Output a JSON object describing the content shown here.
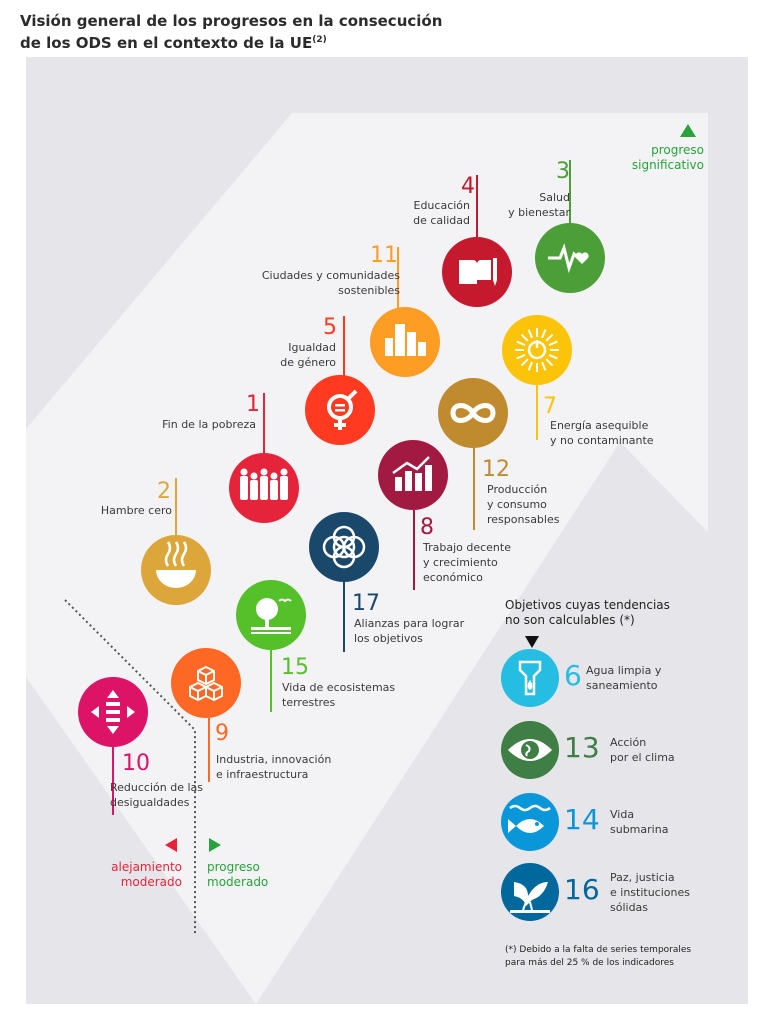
{
  "title": {
    "line1": "Visión general de los progresos en la consecución",
    "line2": "de los ODS en el contexto de la UE",
    "sup": "(2)"
  },
  "legend": {
    "significant": [
      "progreso",
      "significativo"
    ],
    "moderate_progress": [
      "progreso",
      "moderado"
    ],
    "moderate_away": [
      "alejamiento",
      "moderado"
    ]
  },
  "goals": [
    {
      "id": "g3",
      "num": "3",
      "label": [
        "Salud",
        "y bienestar"
      ],
      "color": "#4c9f38",
      "icon": "heartbeat-icon"
    },
    {
      "id": "g4",
      "num": "4",
      "label": [
        "Educación",
        "de calidad"
      ],
      "color": "#c5192d",
      "icon": "book-pencil-icon"
    },
    {
      "id": "g11",
      "num": "11",
      "label": [
        "Ciudades y comunidades",
        "sostenibles"
      ],
      "color": "#fd9d24",
      "icon": "city-icon"
    },
    {
      "id": "g5",
      "num": "5",
      "label": [
        "Igualdad",
        "de género"
      ],
      "color": "#ff3a21",
      "icon": "gender-equality-icon"
    },
    {
      "id": "g7",
      "num": "7",
      "label": [
        "Energía asequible",
        "y no contaminante"
      ],
      "color": "#fcc30b",
      "icon": "sun-power-icon"
    },
    {
      "id": "g1",
      "num": "1",
      "label": [
        "Fin de la pobreza"
      ],
      "color": "#e5243b",
      "icon": "family-icon"
    },
    {
      "id": "g12",
      "num": "12",
      "label": [
        "Producción",
        "y consumo",
        "responsables"
      ],
      "color": "#bf8b2e",
      "icon": "infinity-icon"
    },
    {
      "id": "g2",
      "num": "2",
      "label": [
        "Hambre cero"
      ],
      "color": "#dda63a",
      "icon": "bowl-icon"
    },
    {
      "id": "g8",
      "num": "8",
      "label": [
        "Trabajo decente",
        "y crecimiento",
        "económico"
      ],
      "color": "#a21942",
      "icon": "growth-chart-icon"
    },
    {
      "id": "g17",
      "num": "17",
      "label": [
        "Alianzas para lograr",
        "los objetivos"
      ],
      "color": "#19486a",
      "icon": "rings-icon"
    },
    {
      "id": "g15",
      "num": "15",
      "label": [
        "Vida de ecosistemas",
        "terrestres"
      ],
      "color": "#56c02b",
      "icon": "tree-birds-icon"
    },
    {
      "id": "g9",
      "num": "9",
      "label": [
        "Industria, innovación",
        "e infraestructura"
      ],
      "color": "#fd6925",
      "icon": "cubes-icon"
    },
    {
      "id": "g10",
      "num": "10",
      "label": [
        "Reducción de las",
        "desigualdades"
      ],
      "color": "#dd1367",
      "icon": "equality-arrows-icon"
    }
  ],
  "non_calculable": {
    "heading": [
      "Objetivos cuyas tendencias",
      "no son calculables (*)"
    ],
    "items": [
      {
        "num": "6",
        "label": [
          "Agua limpia y",
          "saneamiento"
        ],
        "color": "#26bde2",
        "numcolor": "#26bde2",
        "icon": "water-drop-icon"
      },
      {
        "num": "13",
        "label": [
          "Acción",
          "por el clima"
        ],
        "color": "#3f7e44",
        "numcolor": "#3f7e44",
        "icon": "eye-globe-icon"
      },
      {
        "num": "14",
        "label": [
          "Vida",
          "submarina"
        ],
        "color": "#0a97d9",
        "numcolor": "#0a97d9",
        "icon": "fish-icon"
      },
      {
        "num": "16",
        "label": [
          "Paz, justicia",
          "e instituciones",
          "sólidas"
        ],
        "color": "#00689d",
        "numcolor": "#00689d",
        "icon": "dove-icon"
      }
    ],
    "footnote": [
      "(*)  Debido a la falta de series temporales",
      "para más del 25 % de los indicadores"
    ]
  },
  "colors": {
    "up": "#26a33a",
    "down": "#e5243b",
    "panel": "#e6e6ea",
    "arrow": "#f2f2f4"
  }
}
